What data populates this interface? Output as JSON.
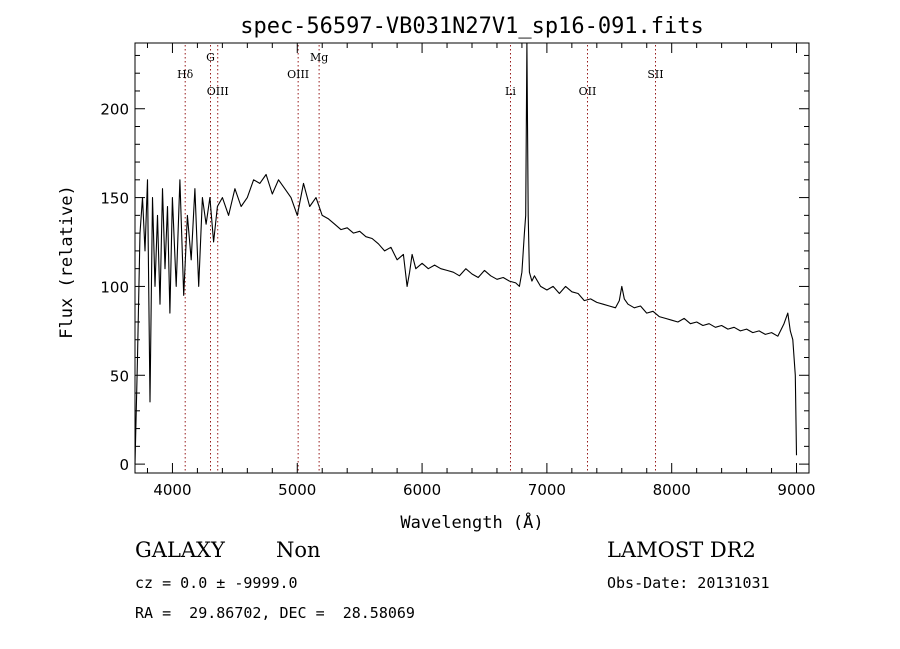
{
  "chart_data": {
    "type": "line",
    "title": "spec-56597-VB031N27V1_sp16-091.fits",
    "xlabel": "Wavelength (Å)",
    "ylabel": "Flux (relative)",
    "xlim": [
      3700,
      9100
    ],
    "ylim": [
      -5,
      237
    ],
    "xticks": [
      4000,
      5000,
      6000,
      7000,
      8000,
      9000
    ],
    "yticks": [
      0,
      50,
      100,
      150,
      200
    ],
    "grid": false,
    "line_color": "#000000",
    "marker_color": "#8b0000",
    "lines": [
      {
        "name": "Hδ",
        "wavelength": 4102,
        "label_level": "mid"
      },
      {
        "name": "G",
        "wavelength": 4305,
        "label_level": "high"
      },
      {
        "name": "OIII",
        "wavelength": 4363,
        "label_level": "low"
      },
      {
        "name": "OIII",
        "wavelength": 5007,
        "label_level": "mid"
      },
      {
        "name": "Mg",
        "wavelength": 5175,
        "label_level": "high"
      },
      {
        "name": "Li",
        "wavelength": 6708,
        "label_level": "low"
      },
      {
        "name": "OII",
        "wavelength": 7325,
        "label_level": "low"
      },
      {
        "name": "SII",
        "wavelength": 7870,
        "label_level": "mid"
      }
    ],
    "x": [
      3700,
      3720,
      3740,
      3760,
      3780,
      3800,
      3820,
      3840,
      3860,
      3880,
      3900,
      3920,
      3940,
      3960,
      3980,
      4000,
      4030,
      4060,
      4090,
      4120,
      4150,
      4180,
      4210,
      4240,
      4270,
      4300,
      4330,
      4360,
      4400,
      4450,
      4500,
      4550,
      4600,
      4650,
      4700,
      4750,
      4800,
      4850,
      4900,
      4950,
      5000,
      5050,
      5100,
      5150,
      5200,
      5250,
      5300,
      5350,
      5400,
      5450,
      5500,
      5550,
      5600,
      5650,
      5700,
      5750,
      5800,
      5850,
      5880,
      5900,
      5920,
      5950,
      6000,
      6050,
      6100,
      6150,
      6200,
      6250,
      6300,
      6350,
      6400,
      6450,
      6500,
      6550,
      6600,
      6650,
      6700,
      6750,
      6780,
      6800,
      6820,
      6830,
      6840,
      6850,
      6860,
      6880,
      6900,
      6950,
      7000,
      7050,
      7100,
      7150,
      7200,
      7250,
      7300,
      7350,
      7400,
      7450,
      7500,
      7550,
      7580,
      7600,
      7620,
      7650,
      7700,
      7750,
      7800,
      7850,
      7900,
      7950,
      8000,
      8050,
      8100,
      8150,
      8200,
      8250,
      8300,
      8350,
      8400,
      8450,
      8500,
      8550,
      8600,
      8650,
      8700,
      8750,
      8800,
      8850,
      8900,
      8930,
      8950,
      8970,
      8990,
      9000
    ],
    "y": [
      0,
      60,
      130,
      150,
      120,
      160,
      35,
      150,
      100,
      140,
      90,
      155,
      110,
      145,
      85,
      150,
      100,
      160,
      95,
      140,
      115,
      155,
      100,
      150,
      135,
      150,
      125,
      145,
      150,
      140,
      155,
      145,
      150,
      160,
      158,
      163,
      152,
      160,
      155,
      150,
      140,
      158,
      145,
      150,
      140,
      138,
      135,
      132,
      133,
      130,
      131,
      128,
      127,
      124,
      120,
      122,
      115,
      118,
      100,
      108,
      118,
      110,
      113,
      110,
      112,
      110,
      109,
      108,
      106,
      110,
      107,
      105,
      109,
      106,
      104,
      105,
      103,
      102,
      100,
      108,
      130,
      140,
      237,
      140,
      108,
      103,
      106,
      100,
      98,
      100,
      96,
      100,
      97,
      96,
      92,
      93,
      91,
      90,
      89,
      88,
      92,
      100,
      93,
      90,
      88,
      89,
      85,
      86,
      83,
      82,
      81,
      80,
      82,
      79,
      80,
      78,
      79,
      77,
      78,
      76,
      77,
      75,
      76,
      74,
      75,
      73,
      74,
      72,
      79,
      85,
      75,
      70,
      50,
      5
    ]
  },
  "footer": {
    "object_class": "GALAXY",
    "subclass": "Non",
    "survey": "LAMOST DR2",
    "cz": "cz = 0.0 ± -9999.0",
    "obs_date": "Obs-Date: 20131031",
    "coords": "RA =  29.86702, DEC =  28.58069"
  }
}
